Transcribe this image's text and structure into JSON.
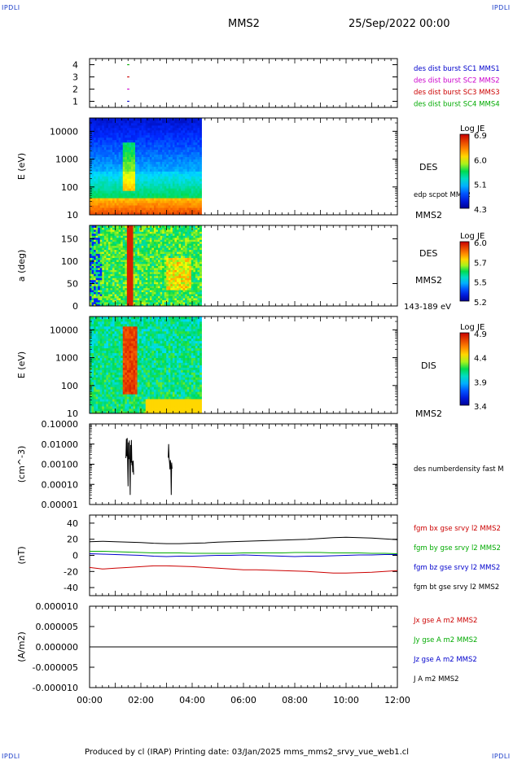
{
  "page": {
    "corner_label": "IPDLI",
    "spacecraft": "MMS2",
    "date": "25/Sep/2022 00:00",
    "footer": "Produced by cl (IRAP)   Printing date: 03/Jan/2025   mms_mms2_srvy_vue_web1.cl"
  },
  "chart_data": [
    {
      "type": "scatter",
      "title": "",
      "xlabel": "",
      "ylabel": "",
      "x_range": [
        "00:00",
        "12:00"
      ],
      "ylim": [
        0.5,
        4.5
      ],
      "y_ticks": [
        "1",
        "2",
        "3",
        "4"
      ],
      "series": [
        {
          "name": "des dist burst SC1 MMS1",
          "color": "#0000cc",
          "y": 1,
          "x": [
            "01:28",
            "01:33"
          ]
        },
        {
          "name": "des dist burst SC2 MMS2",
          "color": "#cc00cc",
          "y": 2,
          "x": [
            "01:28",
            "01:33"
          ]
        },
        {
          "name": "des dist burst SC3 MMS3",
          "color": "#cc0000",
          "y": 3,
          "x": [
            "01:28",
            "01:33"
          ]
        },
        {
          "name": "des dist burst SC4 MMS4",
          "color": "#00aa00",
          "y": 4,
          "x": [
            "01:28",
            "01:33"
          ]
        }
      ]
    },
    {
      "type": "heatmap",
      "ylabel": "E (eV)",
      "y_scale": "log",
      "ylim": [
        10,
        30000
      ],
      "y_ticks": [
        "10",
        "100",
        "1000",
        "10000"
      ],
      "x_range": [
        "00:00",
        "12:00"
      ],
      "data_end": "04:22",
      "label": "DES",
      "extra_label": "edp scpot MMS2",
      "spacecraft_label": "MMS2",
      "colorbar": {
        "title": "Log JE",
        "ticks": [
          "6.9",
          "6.0",
          "5.1",
          "4.3"
        ]
      }
    },
    {
      "type": "heatmap",
      "ylabel": "a (deg)",
      "ylim": [
        0,
        180
      ],
      "y_ticks": [
        "0",
        "50",
        "100",
        "150"
      ],
      "x_range": [
        "00:00",
        "12:00"
      ],
      "data_end": "04:22",
      "label": "DES",
      "spacecraft_label": "MMS2",
      "energy_label": "143-189 eV",
      "colorbar": {
        "title": "Log JE",
        "ticks": [
          "6.0",
          "5.7",
          "5.5",
          "5.2"
        ]
      }
    },
    {
      "type": "heatmap",
      "ylabel": "E (eV)",
      "y_scale": "log",
      "ylim": [
        10,
        30000
      ],
      "y_ticks": [
        "10",
        "100",
        "1000",
        "10000"
      ],
      "x_range": [
        "00:00",
        "12:00"
      ],
      "data_end": "04:22",
      "label": "DIS",
      "spacecraft_label": "MMS2",
      "colorbar": {
        "title": "Log JE",
        "ticks": [
          "4.9",
          "4.4",
          "3.9",
          "3.4"
        ]
      }
    },
    {
      "type": "line",
      "ylabel": "(cm^-3)",
      "y_scale": "log",
      "ylim": [
        1e-05,
        0.1
      ],
      "y_ticks": [
        "0.10000",
        "0.01000",
        "0.00100",
        "0.00010",
        "0.00001"
      ],
      "series": [
        {
          "name": "des numberdensity fast M",
          "color": "#000000",
          "x": [
            "01:25",
            "01:26",
            "01:27",
            "01:28",
            "01:29",
            "01:30",
            "01:31",
            "01:32",
            "01:33",
            "01:34",
            "01:35",
            "01:36",
            "01:37",
            "01:38",
            "01:39",
            "01:40",
            "01:41",
            "01:42",
            "01:43",
            "03:04",
            "03:05",
            "03:06",
            "03:07",
            "03:08",
            "03:09",
            "03:10",
            "03:11",
            "03:12",
            "03:13",
            "03:54"
          ],
          "y": [
            0.002,
            0.018,
            0.0025,
            0.02,
            0.0015,
            8e-05,
            0.012,
            0.0018,
            0.015,
            0.0011,
            3e-05,
            0.009,
            0.0012,
            0.016,
            0.0009,
            0.0014,
            0.0004,
            0.0015,
            0.0003,
            0.0021,
            0.01,
            0.0018,
            0.0012,
            0.00055,
            0.0016,
            0.0008,
            3e-05,
            0.0012,
            0.0006,
            0.00145
          ]
        }
      ]
    },
    {
      "type": "line",
      "ylabel": "(nT)",
      "ylim": [
        -50,
        50
      ],
      "y_ticks": [
        "40",
        "20",
        "0",
        "-20",
        "-40"
      ],
      "x_range": [
        "00:00",
        "12:00"
      ],
      "series": [
        {
          "name": "fgm bx gse srvy l2 MMS2",
          "color": "#cc0000",
          "x": [
            "00:00",
            "00:30",
            "01:00",
            "01:30",
            "02:00",
            "02:30",
            "03:00",
            "03:30",
            "04:00",
            "04:30",
            "05:00",
            "05:30",
            "06:00",
            "06:30",
            "07:00",
            "07:30",
            "08:00",
            "08:30",
            "09:00",
            "09:30",
            "10:00",
            "10:30",
            "11:00",
            "11:30",
            "12:00"
          ],
          "y": [
            -15,
            -17,
            -16,
            -15,
            -14,
            -13,
            -13,
            -13.5,
            -14,
            -15,
            -16,
            -17,
            -18,
            -18,
            -18.5,
            -19,
            -19.5,
            -20,
            -21,
            -22,
            -22,
            -21.5,
            -21,
            -20,
            -19
          ]
        },
        {
          "name": "fgm by gse srvy l2 MMS2",
          "color": "#00aa00",
          "x": [
            "00:00",
            "00:30",
            "01:00",
            "01:30",
            "02:00",
            "02:30",
            "03:00",
            "03:30",
            "04:00",
            "04:30",
            "05:00",
            "05:30",
            "06:00",
            "06:30",
            "07:00",
            "07:30",
            "08:00",
            "08:30",
            "09:00",
            "09:30",
            "10:00",
            "10:30",
            "11:00",
            "11:30",
            "12:00"
          ],
          "y": [
            5,
            5,
            4.5,
            4,
            3.5,
            3,
            3,
            3,
            2.5,
            2.5,
            2.5,
            2.5,
            3,
            3,
            3,
            3,
            3.5,
            3.5,
            3.5,
            3,
            3,
            3,
            2.5,
            2.5,
            2
          ]
        },
        {
          "name": "fgm bz gse srvy l2 MMS2",
          "color": "#0000cc",
          "x": [
            "00:00",
            "00:30",
            "01:00",
            "01:30",
            "02:00",
            "02:30",
            "03:00",
            "03:30",
            "04:00",
            "04:30",
            "05:00",
            "05:30",
            "06:00",
            "06:30",
            "07:00",
            "07:30",
            "08:00",
            "08:30",
            "09:00",
            "09:30",
            "10:00",
            "10:30",
            "11:00",
            "11:30",
            "12:00"
          ],
          "y": [
            2,
            1.5,
            1,
            0.5,
            0,
            -1,
            -1.5,
            -1,
            -1,
            -0.5,
            0,
            0,
            0.5,
            0,
            -0.5,
            -1,
            -1.5,
            -1,
            -1,
            -0.5,
            0,
            0.5,
            0.5,
            1,
            1
          ]
        },
        {
          "name": "fgm bt gse srvy l2 MMS2",
          "color": "#000000",
          "x": [
            "00:00",
            "00:30",
            "01:00",
            "01:30",
            "02:00",
            "02:30",
            "03:00",
            "03:30",
            "04:00",
            "04:30",
            "05:00",
            "05:30",
            "06:00",
            "06:30",
            "07:00",
            "07:30",
            "08:00",
            "08:30",
            "09:00",
            "09:30",
            "10:00",
            "10:30",
            "11:00",
            "11:30",
            "12:00"
          ],
          "y": [
            17,
            17.5,
            17,
            16.5,
            16,
            15,
            14.5,
            14.5,
            15,
            15.5,
            16.5,
            17,
            17.5,
            18,
            18.5,
            19,
            19.5,
            20,
            21,
            22,
            22.5,
            22,
            21.5,
            20.5,
            19.5
          ]
        }
      ]
    },
    {
      "type": "line",
      "ylabel": "(A/m2)",
      "ylim": [
        -1e-05,
        1e-05
      ],
      "y_ticks": [
        "0.000010",
        "0.000005",
        "0.000000",
        "-0.000005",
        "-0.000010"
      ],
      "x_ticks": [
        "00:00",
        "02:00",
        "04:00",
        "06:00",
        "08:00",
        "10:00",
        "12:00"
      ],
      "series": [
        {
          "name": "Jx gse A m2 MMS2",
          "color": "#cc0000"
        },
        {
          "name": "Jy gse A m2 MMS2",
          "color": "#00aa00"
        },
        {
          "name": "Jz gse A m2 MMS2",
          "color": "#0000cc"
        },
        {
          "name": "J A m2 MMS2",
          "color": "#000000",
          "x": [
            "00:00",
            "12:00"
          ],
          "y": [
            0,
            0
          ]
        }
      ]
    }
  ]
}
